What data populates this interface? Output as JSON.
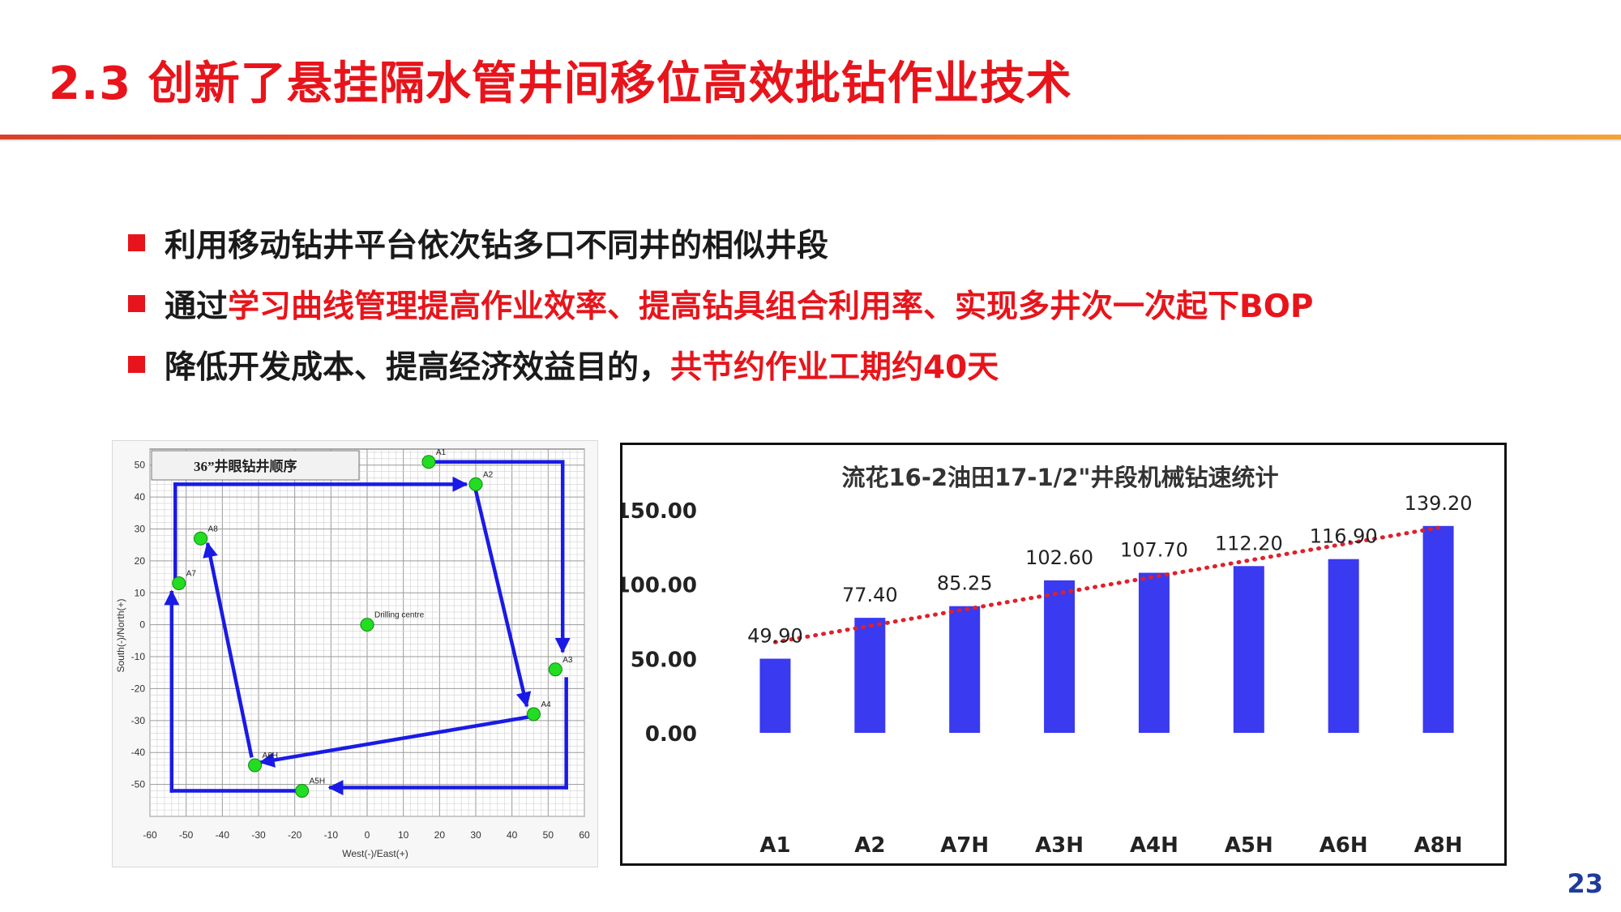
{
  "slide": {
    "title": "2.3 创新了悬挂隔水管井间移位高效批钻作业技术",
    "page_number": "23"
  },
  "bullets": [
    {
      "segments": [
        {
          "text": "利用移动钻井平台依次钻多口不同井的相似井段",
          "highlight": false
        }
      ]
    },
    {
      "segments": [
        {
          "text": "通过",
          "highlight": false
        },
        {
          "text": "学习曲线管理提高作业效率、提高钻具组合利用率、实现多井次一次起下BOP",
          "highlight": true
        }
      ]
    },
    {
      "segments": [
        {
          "text": "降低开发成本、提高经济效益目的，",
          "highlight": false
        },
        {
          "text": "共节约作业工期约40天",
          "highlight": true
        }
      ]
    }
  ],
  "colors": {
    "accent_red": "#e8141b",
    "bar_blue": "#3a3af0",
    "trend_red": "#e0202a",
    "well_green": "#22dd22",
    "arrow_blue": "#1a1ae6",
    "page_number_blue": "#1f3b9a"
  },
  "chart_data": [
    {
      "type": "scatter",
      "title": "36”井眼钻井顺序",
      "xlabel": "West(-)/East(+)",
      "ylabel": "South(-)/North(+)",
      "xlim": [
        -60,
        60
      ],
      "ylim": [
        -60,
        55
      ],
      "xticks": [
        -60,
        -50,
        -40,
        -30,
        -20,
        -10,
        0,
        10,
        20,
        30,
        40,
        50,
        60
      ],
      "yticks": [
        50,
        40,
        30,
        20,
        10,
        0,
        -10,
        -20,
        -30,
        -40,
        -50
      ],
      "grid": true,
      "points": [
        {
          "label": "A1",
          "x": 17,
          "y": 51
        },
        {
          "label": "A2",
          "x": 30,
          "y": 44
        },
        {
          "label": "A8",
          "x": -46,
          "y": 27
        },
        {
          "label": "A7",
          "x": -52,
          "y": 13
        },
        {
          "label": "Drilling centre",
          "x": 0,
          "y": 0
        },
        {
          "label": "A3",
          "x": 52,
          "y": -14
        },
        {
          "label": "A4",
          "x": 46,
          "y": -28
        },
        {
          "label": "A6H",
          "x": -31,
          "y": -44
        },
        {
          "label": "A5H",
          "x": -18,
          "y": -52
        }
      ],
      "path": [
        {
          "from": [
            19,
            51
          ],
          "to": [
            54,
            51
          ],
          "arrow": false
        },
        {
          "from": [
            54,
            51
          ],
          "to": [
            54,
            -8
          ],
          "arrow": true
        },
        {
          "from": [
            30,
            42
          ],
          "to": [
            44,
            -25
          ],
          "arrow": true
        },
        {
          "from": [
            44,
            -29
          ],
          "to": [
            -29,
            -43
          ],
          "arrow": true
        },
        {
          "from": [
            -32,
            -41
          ],
          "to": [
            -44,
            25
          ],
          "arrow": true
        },
        {
          "from": [
            -53,
            15
          ],
          "to": [
            -53,
            44
          ],
          "arrow": false
        },
        {
          "from": [
            -53,
            44
          ],
          "to": [
            27,
            44
          ],
          "arrow": true
        },
        {
          "from": [
            55,
            -17
          ],
          "to": [
            55,
            -51
          ],
          "arrow": false
        },
        {
          "from": [
            55,
            -51
          ],
          "to": [
            -10,
            -51
          ],
          "arrow": true
        },
        {
          "from": [
            -20,
            -52
          ],
          "to": [
            -54,
            -52
          ],
          "arrow": false
        },
        {
          "from": [
            -54,
            -52
          ],
          "to": [
            -54,
            10
          ],
          "arrow": true
        }
      ]
    },
    {
      "type": "bar",
      "title": "流花16-2油田17-1/2\"井段机械钻速统计",
      "categories": [
        "A1",
        "A2",
        "A7H",
        "A3H",
        "A4H",
        "A5H",
        "A6H",
        "A8H"
      ],
      "values": [
        49.9,
        77.4,
        85.25,
        102.6,
        107.7,
        112.2,
        116.9,
        139.2
      ],
      "value_labels": [
        "49.90",
        "77.40",
        "85.25",
        "102.60",
        "107.70",
        "112.20",
        "116.90",
        "139.20"
      ],
      "ylim": [
        0,
        150
      ],
      "yticks": [
        0,
        50,
        100,
        150
      ],
      "ytick_labels": [
        "0.00",
        "50.00",
        "100.00",
        "150.00"
      ],
      "trendline": {
        "style": "dotted",
        "start": 61,
        "end": 138
      },
      "legend": "none"
    }
  ]
}
